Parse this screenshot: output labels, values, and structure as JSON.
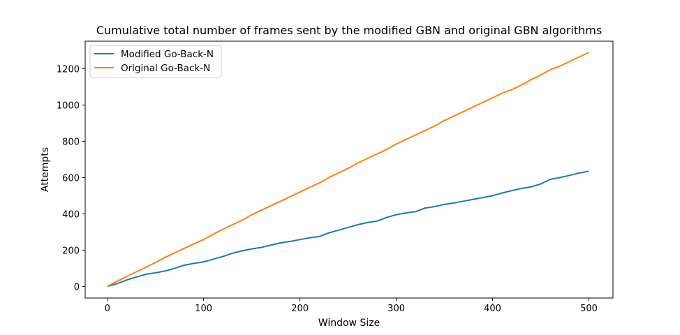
{
  "chart_data": {
    "type": "line",
    "title": "Cumulative total number of frames sent by the modified GBN and original GBN algorithms",
    "xlabel": "Window Size",
    "ylabel": "Attempts",
    "xlim": [
      -23,
      525
    ],
    "ylim": [
      -64,
      1352
    ],
    "xticks": [
      0,
      100,
      200,
      300,
      400,
      500
    ],
    "yticks": [
      0,
      200,
      400,
      600,
      800,
      1000,
      1200
    ],
    "grid": false,
    "legend_position": "upper left",
    "series": [
      {
        "name": "Modified Go-Back-N",
        "color": "#1f77b4",
        "x": [
          0,
          10,
          20,
          30,
          40,
          50,
          60,
          70,
          80,
          90,
          100,
          110,
          120,
          130,
          140,
          150,
          160,
          170,
          180,
          190,
          200,
          210,
          220,
          230,
          240,
          250,
          260,
          270,
          280,
          290,
          300,
          310,
          320,
          330,
          340,
          350,
          360,
          370,
          380,
          390,
          400,
          410,
          420,
          430,
          440,
          450,
          460,
          470,
          480,
          490,
          500
        ],
        "y": [
          0,
          15,
          35,
          52,
          67,
          75,
          85,
          100,
          117,
          127,
          135,
          150,
          165,
          183,
          196,
          207,
          215,
          228,
          240,
          248,
          258,
          268,
          275,
          295,
          310,
          325,
          340,
          352,
          360,
          380,
          395,
          405,
          412,
          432,
          440,
          452,
          460,
          470,
          480,
          490,
          500,
          515,
          528,
          540,
          548,
          565,
          590,
          600,
          612,
          625,
          635
        ]
      },
      {
        "name": "Original Go-Back-N",
        "color": "#ff7f0e",
        "x": [
          0,
          10,
          20,
          30,
          40,
          50,
          60,
          70,
          80,
          90,
          100,
          110,
          120,
          130,
          140,
          150,
          160,
          170,
          180,
          190,
          200,
          210,
          220,
          230,
          240,
          250,
          260,
          270,
          280,
          290,
          300,
          310,
          320,
          330,
          340,
          350,
          360,
          370,
          380,
          390,
          400,
          410,
          420,
          430,
          440,
          450,
          460,
          470,
          480,
          490,
          500
        ],
        "y": [
          0,
          28,
          55,
          80,
          105,
          132,
          160,
          185,
          210,
          235,
          258,
          287,
          315,
          340,
          365,
          395,
          420,
          445,
          470,
          495,
          520,
          545,
          570,
          600,
          625,
          650,
          680,
          705,
          730,
          755,
          785,
          810,
          835,
          860,
          885,
          915,
          940,
          965,
          990,
          1015,
          1040,
          1065,
          1085,
          1110,
          1140,
          1165,
          1195,
          1215,
          1240,
          1265,
          1290
        ]
      }
    ]
  }
}
